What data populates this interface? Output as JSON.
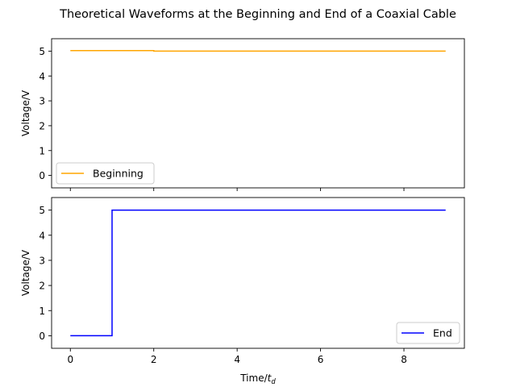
{
  "figure": {
    "title": "Theoretical Waveforms at the Beginning and End of a Coaxial Cable"
  },
  "chart_data": [
    {
      "type": "line",
      "title": "",
      "xlabel": "",
      "ylabel": "Voltage/V",
      "xlim": [
        -0.45,
        9.45
      ],
      "ylim": [
        -0.5,
        5.5
      ],
      "x_ticks": [
        0,
        2,
        4,
        6,
        8
      ],
      "x_tick_labels_visible": false,
      "y_ticks": [
        0,
        1,
        2,
        3,
        4,
        5
      ],
      "grid": false,
      "legend_position": "lower-left",
      "series": [
        {
          "name": "Beginning",
          "color": "#FFA500",
          "x": [
            0,
            2,
            2,
            9
          ],
          "y": [
            5.02,
            5.02,
            5.0,
            5.0
          ]
        }
      ]
    },
    {
      "type": "line",
      "title": "",
      "xlabel": "Time/",
      "xlabel_symbol": "t",
      "xlabel_subscript": "d",
      "ylabel": "Voltage/V",
      "xlim": [
        -0.45,
        9.45
      ],
      "ylim": [
        -0.5,
        5.5
      ],
      "x_ticks": [
        0,
        2,
        4,
        6,
        8
      ],
      "x_tick_labels_visible": true,
      "y_ticks": [
        0,
        1,
        2,
        3,
        4,
        5
      ],
      "grid": false,
      "legend_position": "lower-right",
      "series": [
        {
          "name": "End",
          "color": "#0000FF",
          "x": [
            0,
            1,
            1,
            9
          ],
          "y": [
            0,
            0,
            5,
            5
          ]
        }
      ]
    }
  ]
}
